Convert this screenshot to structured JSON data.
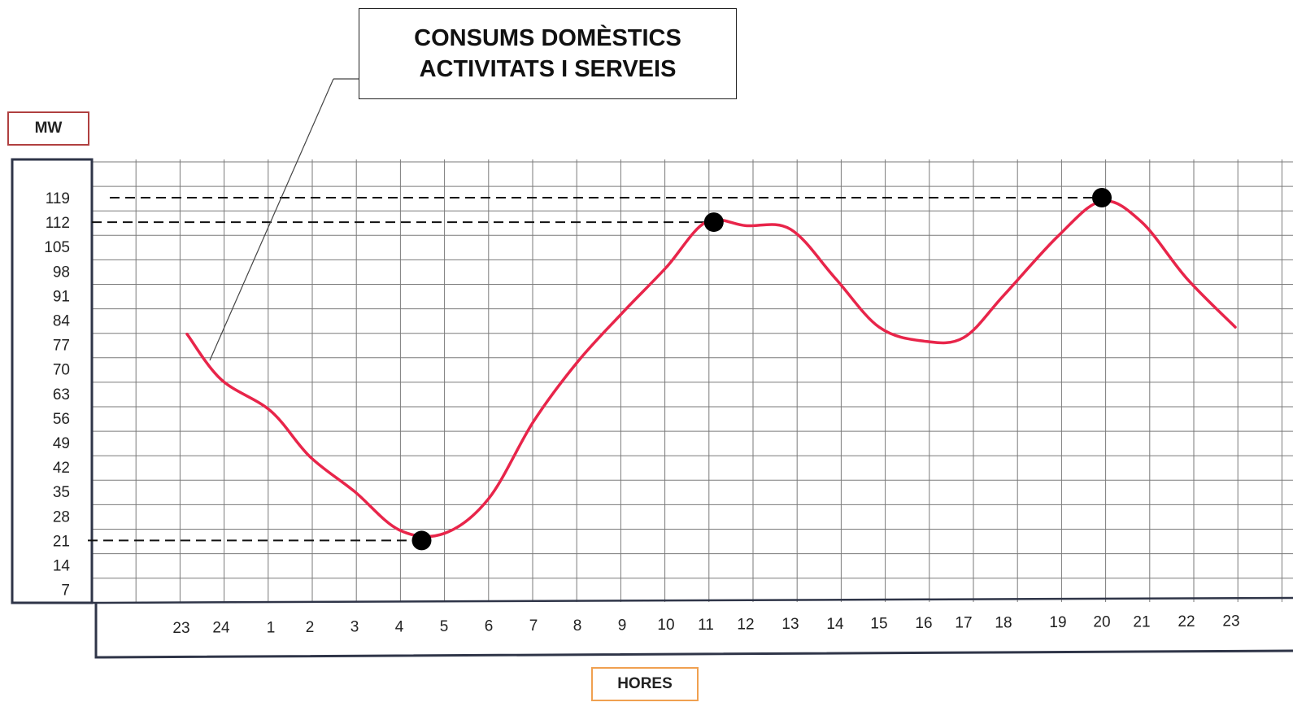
{
  "chart_data": {
    "type": "line",
    "title": "CONSUMS DOMÈSTICS ACTIVITATS I SERVEIS",
    "title_lines": [
      "CONSUMS DOMÈSTICS",
      "ACTIVITATS I SERVEIS"
    ],
    "xlabel": "HORES",
    "ylabel": "MW",
    "x_ticks": [
      "23",
      "24",
      "1",
      "2",
      "3",
      "4",
      "5",
      "6",
      "7",
      "8",
      "9",
      "10",
      "11",
      "12",
      "13",
      "14",
      "15",
      "16",
      "17",
      "18",
      "19",
      "20",
      "21",
      "22",
      "23"
    ],
    "y_ticks": [
      119,
      112,
      105,
      98,
      91,
      84,
      77,
      70,
      63,
      56,
      49,
      42,
      35,
      28,
      21,
      14,
      7
    ],
    "ylim": [
      7,
      119
    ],
    "grid": true,
    "series": [
      {
        "color": "#e8254a",
        "points": [
          {
            "x": "23",
            "y": 80
          },
          {
            "x": "24",
            "y": 67
          },
          {
            "x": "1",
            "y": 58
          },
          {
            "x": "2",
            "y": 45
          },
          {
            "x": "3",
            "y": 35
          },
          {
            "x": "4",
            "y": 24
          },
          {
            "x": "5",
            "y": 23
          },
          {
            "x": "6",
            "y": 33
          },
          {
            "x": "7",
            "y": 55
          },
          {
            "x": "8",
            "y": 72
          },
          {
            "x": "9",
            "y": 86
          },
          {
            "x": "10",
            "y": 99
          },
          {
            "x": "11",
            "y": 112
          },
          {
            "x": "12",
            "y": 111
          },
          {
            "x": "13",
            "y": 110
          },
          {
            "x": "14",
            "y": 96
          },
          {
            "x": "15",
            "y": 82
          },
          {
            "x": "16",
            "y": 78
          },
          {
            "x": "17",
            "y": 79
          },
          {
            "x": "18",
            "y": 91
          },
          {
            "x": "19",
            "y": 108
          },
          {
            "x": "20",
            "y": 118
          },
          {
            "x": "21",
            "y": 112
          },
          {
            "x": "22",
            "y": 96
          },
          {
            "x": "23",
            "y": 82
          }
        ]
      }
    ],
    "markers": [
      {
        "x": "4.5",
        "y": 21
      },
      {
        "x": "11.2",
        "y": 112
      },
      {
        "x": "20",
        "y": 119
      }
    ],
    "reference_lines_y": [
      119,
      112,
      21
    ]
  }
}
